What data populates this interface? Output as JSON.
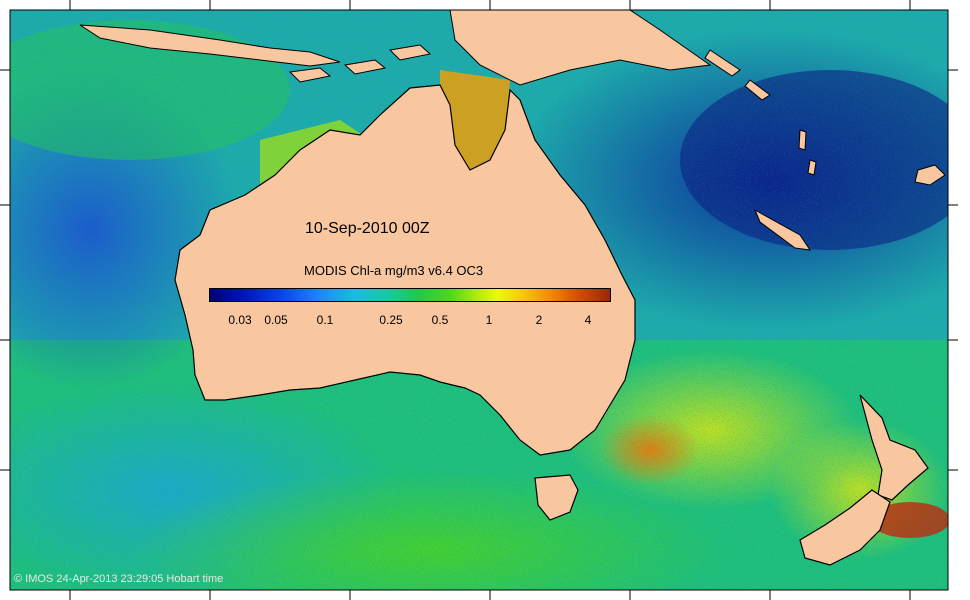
{
  "map": {
    "title": "10-Sep-2010 00Z",
    "colorbar_title": "MODIS Chl-a mg/m3 v6.4 OC3",
    "colorbar_ticks": [
      "0.03",
      "0.05",
      "0.1",
      "0.25",
      "0.5",
      "1",
      "2",
      "4"
    ],
    "footer": "© IMOS 24-Apr-2013 23:29:05 Hobart time",
    "colors": {
      "land": "#f8c7a0",
      "ocean_low": "#0a2a9a",
      "ocean_mid": "#1fb86a",
      "ocean_high": "#c83c0a",
      "coast": "#000000"
    }
  }
}
